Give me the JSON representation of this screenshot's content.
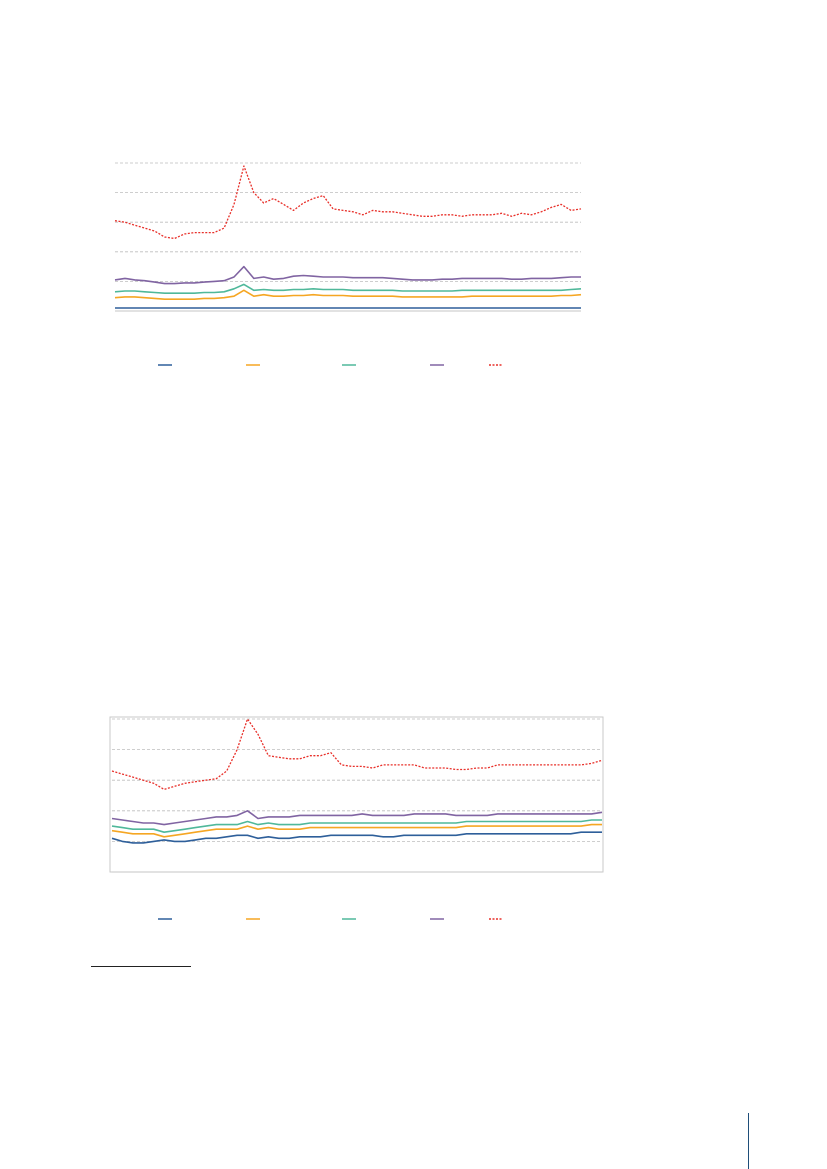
{
  "chart_data": [
    {
      "type": "line",
      "title": "",
      "xlabel": "",
      "ylabel": "",
      "grid": true,
      "legend": "bottom",
      "box": false,
      "ylim": [
        0,
        100
      ],
      "gridlines": [
        20,
        40,
        60,
        80,
        100
      ],
      "series": [
        {
          "name": "",
          "color": "#2e5f9a",
          "dashed": false,
          "values": [
            2,
            2,
            2,
            2,
            2,
            2,
            2,
            2,
            2,
            2,
            2,
            2,
            2,
            2,
            2,
            2,
            2,
            2,
            2,
            2,
            2,
            2,
            2,
            2,
            2,
            2,
            2,
            2,
            2,
            2,
            2,
            2,
            2,
            2,
            2,
            2,
            2,
            2,
            2,
            2,
            2,
            2,
            2,
            2,
            2,
            2,
            2,
            2
          ]
        },
        {
          "name": "",
          "color": "#f5a623",
          "dashed": false,
          "values": [
            9,
            9.5,
            9.5,
            9,
            8.5,
            8,
            8,
            8,
            8,
            8.5,
            8.5,
            9,
            10,
            14,
            10,
            11,
            10,
            10,
            10.5,
            10.5,
            11,
            10.5,
            10.5,
            10.5,
            10,
            10,
            10,
            10,
            10,
            9.5,
            9.5,
            9.5,
            9.5,
            9.5,
            9.5,
            9.5,
            10,
            10,
            10,
            10,
            10,
            10,
            10,
            10,
            10,
            10.5,
            10.5,
            11
          ]
        },
        {
          "name": "",
          "color": "#4fb89a",
          "dashed": false,
          "values": [
            13,
            13.5,
            13.5,
            13,
            12.5,
            12,
            12,
            12,
            12,
            12.5,
            12.5,
            13,
            15,
            18,
            14,
            14.5,
            14,
            14,
            14.5,
            14.5,
            15,
            14.5,
            14.5,
            14.5,
            14,
            14,
            14,
            14,
            14,
            13.5,
            13.5,
            13.5,
            13.5,
            13.5,
            13.5,
            14,
            14,
            14,
            14,
            14,
            14,
            14,
            14,
            14,
            14,
            14,
            14.5,
            15
          ]
        },
        {
          "name": "",
          "color": "#8064a2",
          "dashed": false,
          "values": [
            21,
            22,
            21,
            20.5,
            19.5,
            18.5,
            18.5,
            19,
            19,
            19.5,
            20,
            20.5,
            23,
            30,
            22,
            23,
            21.5,
            22,
            23.5,
            24,
            23.5,
            23,
            23,
            23,
            22.5,
            22.5,
            22.5,
            22.5,
            22,
            21.5,
            21,
            21,
            21,
            21.5,
            21.5,
            22,
            22,
            22,
            22,
            22,
            21.5,
            21.5,
            22,
            22,
            22,
            22.5,
            23,
            23
          ]
        },
        {
          "name": "",
          "color": "#e8302a",
          "dashed": true,
          "values": [
            61,
            60,
            58,
            56,
            54,
            50,
            49,
            52,
            53,
            53,
            53,
            56,
            72,
            98,
            80,
            73,
            76,
            72,
            68,
            73,
            76,
            78,
            69,
            68,
            67,
            65,
            68,
            67,
            67,
            66,
            65,
            64,
            64,
            65,
            65,
            64,
            65,
            65,
            65,
            66,
            64,
            66,
            65,
            67,
            70,
            72,
            68,
            69
          ]
        }
      ]
    },
    {
      "type": "line",
      "title": "",
      "xlabel": "",
      "ylabel": "",
      "grid": true,
      "legend": "bottom",
      "box": true,
      "ylim": [
        0,
        100
      ],
      "gridlines": [
        20,
        40,
        60,
        80,
        100
      ],
      "series": [
        {
          "name": "",
          "color": "#2e5f9a",
          "dashed": false,
          "values": [
            22,
            20,
            19,
            19,
            20,
            21,
            20,
            20,
            21,
            22,
            22,
            23,
            24,
            24,
            22,
            23,
            22,
            22,
            23,
            23,
            23,
            24,
            24,
            24,
            24,
            24,
            23,
            23,
            24,
            24,
            24,
            24,
            24,
            24,
            25,
            25,
            25,
            25,
            25,
            25,
            25,
            25,
            25,
            25,
            25,
            26,
            26,
            26
          ]
        },
        {
          "name": "",
          "color": "#f5a623",
          "dashed": false,
          "values": [
            27,
            26,
            25,
            25,
            25,
            23,
            24,
            25,
            26,
            27,
            28,
            28,
            28,
            30,
            28,
            29,
            28,
            28,
            28,
            29,
            29,
            29,
            29,
            29,
            29,
            29,
            29,
            29,
            29,
            29,
            29,
            29,
            29,
            29,
            30,
            30,
            30,
            30,
            30,
            30,
            30,
            30,
            30,
            30,
            30,
            30,
            31,
            31
          ]
        },
        {
          "name": "",
          "color": "#4fb89a",
          "dashed": false,
          "values": [
            30,
            29,
            28,
            28,
            28,
            26,
            27,
            28,
            29,
            30,
            31,
            31,
            31,
            33,
            31,
            32,
            31,
            31,
            31,
            32,
            32,
            32,
            32,
            32,
            32,
            32,
            32,
            32,
            32,
            32,
            32,
            32,
            32,
            32,
            33,
            33,
            33,
            33,
            33,
            33,
            33,
            33,
            33,
            33,
            33,
            33,
            34,
            34
          ]
        },
        {
          "name": "",
          "color": "#8064a2",
          "dashed": false,
          "values": [
            35,
            34,
            33,
            32,
            32,
            31,
            32,
            33,
            34,
            35,
            36,
            36,
            37,
            40,
            35,
            36,
            36,
            36,
            37,
            37,
            37,
            37,
            37,
            37,
            38,
            37,
            37,
            37,
            37,
            38,
            38,
            38,
            38,
            37,
            37,
            37,
            37,
            38,
            38,
            38,
            38,
            38,
            38,
            38,
            38,
            38,
            38,
            39
          ]
        },
        {
          "name": "",
          "color": "#e8302a",
          "dashed": true,
          "values": [
            66,
            64,
            62,
            60,
            58,
            54,
            56,
            58,
            59,
            60,
            61,
            66,
            80,
            100,
            90,
            76,
            75,
            74,
            74,
            76,
            76,
            78,
            70,
            69,
            69,
            68,
            70,
            70,
            70,
            70,
            68,
            68,
            68,
            67,
            67,
            68,
            68,
            70,
            70,
            70,
            70,
            70,
            70,
            70,
            70,
            70,
            71,
            73
          ]
        }
      ]
    }
  ]
}
